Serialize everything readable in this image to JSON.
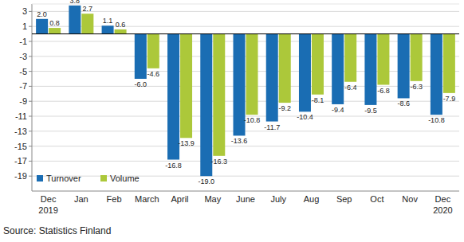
{
  "chart_data": {
    "type": "bar",
    "categories": [
      "Dec 2019",
      "Jan",
      "Feb",
      "March",
      "April",
      "May",
      "June",
      "July",
      "Aug",
      "Sep",
      "Oct",
      "Nov",
      "Dec 2020"
    ],
    "series": [
      {
        "name": "Turnover",
        "color": "#1a6db3",
        "values": [
          2.0,
          3.8,
          1.1,
          -6.0,
          -16.8,
          -19.0,
          -13.6,
          -11.7,
          -10.4,
          -9.4,
          -9.5,
          -8.6,
          -10.8
        ],
        "value_labels": [
          "2.0",
          "3.8",
          "1.1",
          "-6.0",
          "-16.8",
          "-19.0",
          "-13.6",
          "-11.7",
          "-10.4",
          "-9.4",
          "-9.5",
          "-8.6",
          "-10.8"
        ]
      },
      {
        "name": "Volume",
        "color": "#acc83a",
        "values": [
          0.8,
          2.7,
          0.6,
          -4.6,
          -13.9,
          -16.3,
          -10.8,
          -9.2,
          -8.1,
          -6.4,
          -6.8,
          -6.3,
          -7.9
        ],
        "value_labels": [
          "0.8",
          "2.7",
          "0.6",
          "-4.6",
          "-13.9",
          "-16.3",
          "-10.8",
          "-9.2",
          "-8.1",
          "-6.4",
          "-6.8",
          "-6.3",
          "-7.9"
        ]
      }
    ],
    "ylim": [
      -21,
      4
    ],
    "yticks": [
      3,
      1,
      -1,
      -3,
      -5,
      -7,
      -9,
      -11,
      -13,
      -15,
      -17,
      -19
    ],
    "grid": true,
    "legend": "lower left",
    "data_labels": true,
    "source": "Source: Statistics Finland"
  }
}
